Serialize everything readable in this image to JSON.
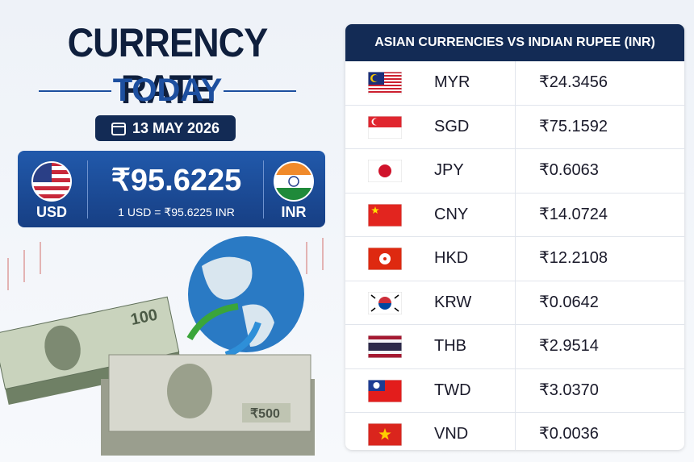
{
  "header": {
    "title": "CURRENCY RATE",
    "subtitle": "TODAY",
    "date": "13 MAY 2026"
  },
  "main_rate": {
    "from": "USD",
    "rate": "₹95.6225",
    "equation": "1 USD = ₹95.6225 INR",
    "to": "INR"
  },
  "table": {
    "title": "ASIAN CURRENCIES VS INDIAN RUPEE (INR)",
    "rows": [
      [
        "MYR",
        "₹24.3456"
      ],
      [
        "SGD",
        "₹75.1592"
      ],
      [
        "JPY",
        "₹0.6063"
      ],
      [
        "CNY",
        "₹14.0724"
      ],
      [
        "HKD",
        "₹12.2108"
      ],
      [
        "KRW",
        "₹0.0642"
      ],
      [
        "THB",
        "₹2.9514"
      ],
      [
        "TWD",
        "₹3.0370"
      ],
      [
        "VND",
        "₹0.0036"
      ]
    ]
  }
}
